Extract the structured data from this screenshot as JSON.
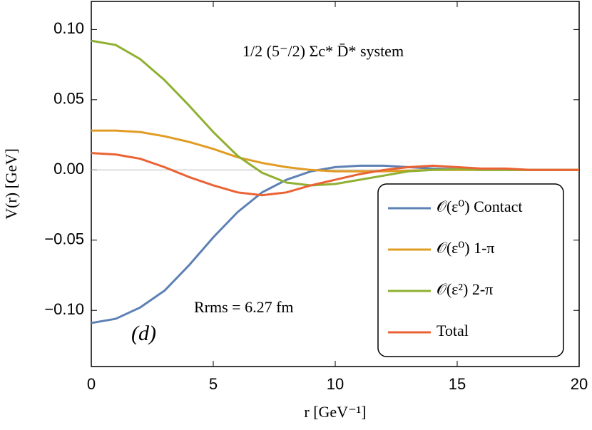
{
  "chart_data": {
    "type": "line",
    "x_label": "r [GeV⁻¹]",
    "y_label": "V(r) [GeV]",
    "annotations": [
      "1/2 (5⁻/2) Σc* D̄* system",
      "Rrms = 6.27 fm",
      "(d)"
    ],
    "x": [
      0,
      1,
      2,
      3,
      4,
      5,
      6,
      7,
      8,
      9,
      10,
      11,
      12,
      13,
      14,
      15,
      16,
      17,
      18,
      19,
      20
    ],
    "series": [
      {
        "name": "𝒪(ε⁰) Contact",
        "color": "#5e81b5",
        "values": [
          -0.109,
          -0.106,
          -0.098,
          -0.086,
          -0.068,
          -0.048,
          -0.03,
          -0.016,
          -0.007,
          -0.001,
          0.002,
          0.003,
          0.003,
          0.002,
          0.001,
          0.0005,
          0,
          0,
          0,
          0,
          0
        ]
      },
      {
        "name": "𝒪(ε⁰) 1-π",
        "color": "#e19c24",
        "values": [
          0.028,
          0.028,
          0.027,
          0.024,
          0.02,
          0.015,
          0.009,
          0.005,
          0.002,
          0.0,
          -0.001,
          -0.001,
          -0.001,
          -0.0005,
          0,
          0,
          0,
          0,
          0,
          0,
          0
        ]
      },
      {
        "name": "𝒪(ε²) 2-π",
        "color": "#8fb032",
        "values": [
          0.092,
          0.089,
          0.079,
          0.064,
          0.046,
          0.027,
          0.01,
          -0.002,
          -0.009,
          -0.011,
          -0.01,
          -0.007,
          -0.004,
          -0.001,
          0,
          0.0005,
          0,
          0,
          0,
          0,
          0
        ]
      },
      {
        "name": "Total",
        "color": "#eb6235",
        "values": [
          0.012,
          0.011,
          0.008,
          0.002,
          -0.005,
          -0.011,
          -0.016,
          -0.018,
          -0.016,
          -0.011,
          -0.007,
          -0.003,
          0.0,
          0.002,
          0.003,
          0.002,
          0.001,
          0.001,
          0,
          0,
          0
        ]
      }
    ],
    "xlim": [
      0,
      20
    ],
    "xticks": [
      0,
      5,
      10,
      15,
      20
    ],
    "ylim": [
      -0.14,
      0.12
    ],
    "yticks": [
      {
        "value": -0.1,
        "label": "−0.10"
      },
      {
        "value": -0.05,
        "label": "−0.05"
      },
      {
        "value": 0,
        "label": "0.00"
      },
      {
        "value": 0.05,
        "label": "0.05"
      },
      {
        "value": 0.1,
        "label": "0.10"
      }
    ],
    "zero_line": true,
    "legend": "lower-right"
  }
}
